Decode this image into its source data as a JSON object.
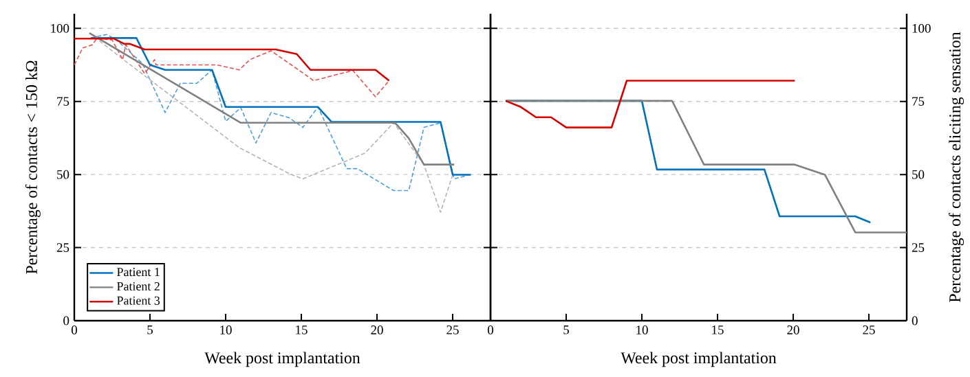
{
  "chart_data": [
    {
      "type": "line",
      "xlabel": "Week post implantation",
      "ylabel": "Percentage of contacts < 150 kΩ",
      "xlim": [
        0,
        27.5
      ],
      "ylim": [
        0,
        105
      ],
      "xticks": [
        0,
        5,
        10,
        15,
        20,
        25
      ],
      "yticks": [
        0,
        25,
        50,
        75,
        100
      ],
      "grid": "y",
      "legend": "bottom left",
      "series": [
        {
          "color": "#4d9fd8",
          "line_style": "dashed",
          "x": [
            1.1,
            2.15,
            2.8,
            4.5,
            6,
            7,
            8.1,
            9.1,
            10,
            11,
            12,
            13,
            14.2,
            15.1,
            16.1,
            18,
            18.7,
            21.1,
            22.1,
            23.1,
            24.2,
            25.1,
            26.1
          ],
          "values": [
            96.7,
            97.9,
            96,
            88,
            71.2,
            81.2,
            81.2,
            85.8,
            68.2,
            72.9,
            60.8,
            71.2,
            69.4,
            66.1,
            73.1,
            52,
            52,
            44.5,
            44.5,
            66.1,
            67.7,
            48.5,
            49.9
          ]
        },
        {
          "color": "#b4b4b4",
          "line_style": "dashed",
          "x": [
            1,
            3.3,
            10.9,
            14.2,
            15.1,
            19.2,
            21.1,
            23.1,
            24.2,
            25
          ],
          "values": [
            98.4,
            89.1,
            59.2,
            50.3,
            48.5,
            57.3,
            67.7,
            53.4,
            37.1,
            49.9
          ]
        },
        {
          "color": "#e85050",
          "line_style": "dashed",
          "x": [
            0,
            0.55,
            1.2,
            1.5,
            2.5,
            3.2,
            3.4,
            4.65,
            5.3,
            5.4,
            9.4,
            10.9,
            11.6,
            13,
            15.5,
            15.8,
            18.4,
            19.9,
            20.8
          ],
          "values": [
            87.5,
            93.3,
            94.4,
            96.7,
            96,
            89.3,
            94.4,
            84.5,
            89.3,
            87.5,
            87.5,
            85.8,
            89.3,
            92.3,
            83.3,
            82.1,
            85.6,
            76.6,
            82.1
          ]
        },
        {
          "name": "Patient 1",
          "color": "#0072bd",
          "line_style": "solid",
          "x": [
            1.1,
            4.1,
            5,
            6,
            9.1,
            10,
            16.1,
            17,
            24.2,
            25,
            26.2
          ],
          "values": [
            96.7,
            96.7,
            87.5,
            85.8,
            85.8,
            73.1,
            73.1,
            68,
            68,
            49.9,
            49.9
          ]
        },
        {
          "name": "Patient 2",
          "color": "#808080",
          "line_style": "solid",
          "x": [
            1,
            11,
            21.2,
            22.1,
            23.1,
            25.1
          ],
          "values": [
            98.4,
            67.7,
            67.7,
            62.4,
            53.4,
            53.4
          ]
        },
        {
          "name": "Patient 3",
          "color": "#d40000",
          "line_style": "solid",
          "x": [
            0,
            2.6,
            3.3,
            3.65,
            4.65,
            13.3,
            14.7,
            15.6,
            19.9,
            20.8
          ],
          "values": [
            96.5,
            96.5,
            94.7,
            94.7,
            92.8,
            92.8,
            91.2,
            85.8,
            85.8,
            82.1
          ]
        }
      ]
    },
    {
      "type": "line",
      "xlabel": "Week post implantation",
      "ylabel": "Percentage of contacts eliciting sensation",
      "xlim": [
        0,
        27.5
      ],
      "ylim": [
        0,
        105
      ],
      "xticks": [
        0,
        5,
        10,
        15,
        20,
        25
      ],
      "yticks": [
        0,
        25,
        50,
        75,
        100
      ],
      "grid": "y",
      "series": [
        {
          "color": "#0072bd",
          "line_style": "solid",
          "x": [
            1,
            10,
            11,
            18.1,
            19.1,
            24.1,
            25.1
          ],
          "values": [
            75.2,
            75.2,
            51.7,
            51.7,
            35.7,
            35.7,
            33.6
          ]
        },
        {
          "color": "#808080",
          "line_style": "solid",
          "x": [
            1,
            12,
            14.1,
            20.1,
            22.1,
            24.1,
            27.5
          ],
          "values": [
            75.2,
            75.2,
            53.4,
            53.4,
            49.9,
            30.2,
            30.2
          ]
        },
        {
          "color": "#d40000",
          "line_style": "solid",
          "x": [
            1,
            2,
            3,
            4,
            5,
            8,
            9,
            20.1
          ],
          "values": [
            75.2,
            73.1,
            69.6,
            69.6,
            66.1,
            66.1,
            82.1,
            82.1
          ]
        }
      ]
    }
  ]
}
